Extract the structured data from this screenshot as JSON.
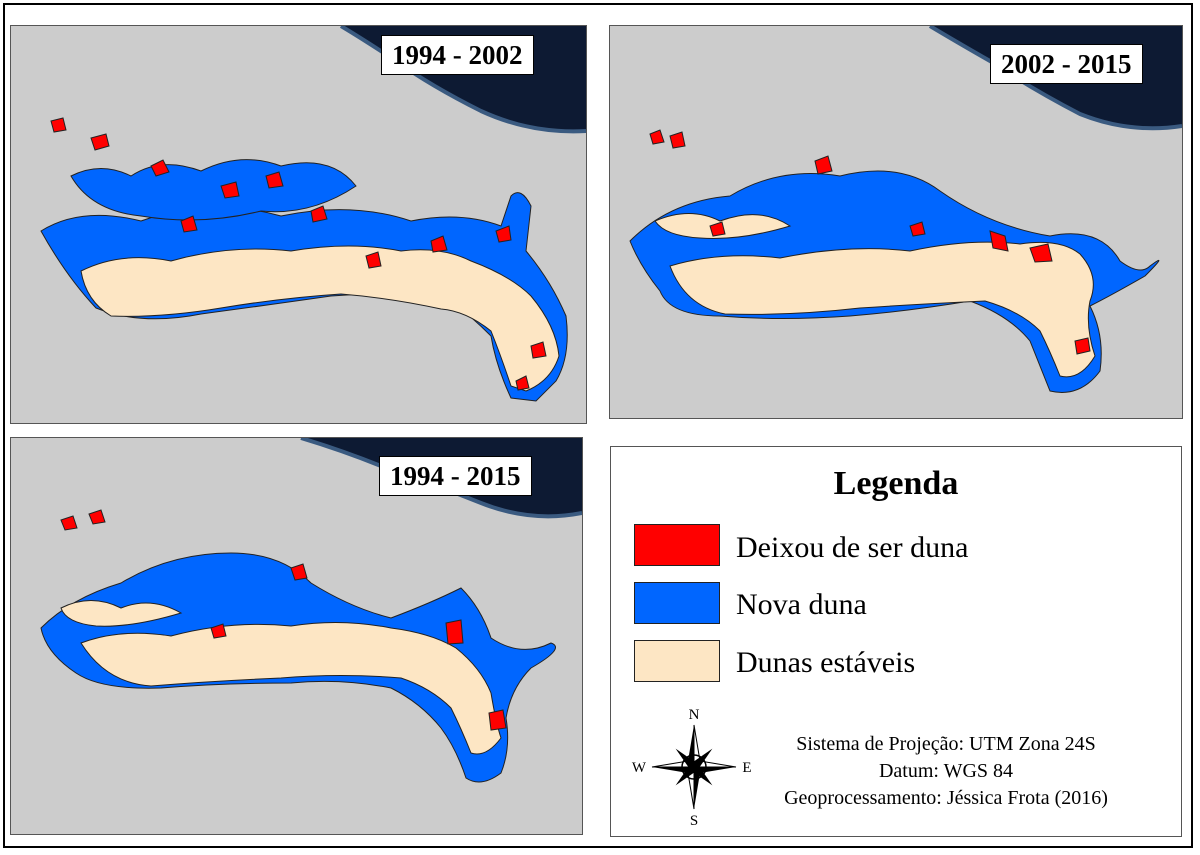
{
  "panels": [
    {
      "id": "p1",
      "title": "1994 - 2002"
    },
    {
      "id": "p2",
      "title": "2002 - 2015"
    },
    {
      "id": "p3",
      "title": "1994 - 2015"
    }
  ],
  "legend": {
    "title": "Legenda",
    "items": [
      {
        "label": "Deixou de ser duna",
        "color": "#ff0000"
      },
      {
        "label": "Nova duna",
        "color": "#0066ff"
      },
      {
        "label": "Dunas estáveis",
        "color": "#fde6c4"
      }
    ]
  },
  "info": {
    "projection": "Sistema de Projeção: UTM Zona 24S",
    "datum": "Datum: WGS 84",
    "credit": "Geoprocessamento: Jéssica Frota (2016)"
  },
  "compass": {
    "n": "N",
    "s": "S",
    "e": "E",
    "w": "W"
  },
  "colors": {
    "map_bg": "#cccccc",
    "sea": "#0d1a33",
    "outline": "#222222"
  }
}
